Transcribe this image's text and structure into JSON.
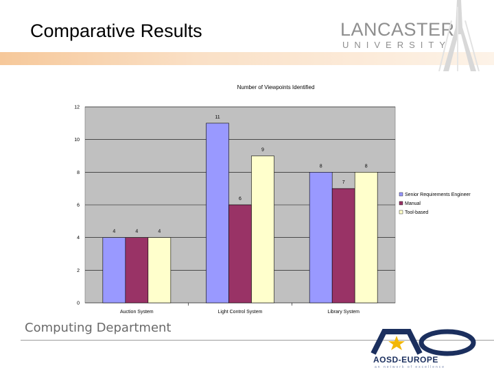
{
  "slide": {
    "title": "Comparative Results",
    "logo_main": "LANCASTER",
    "logo_sub": "UNIVERSITY",
    "footer": "Computing Department",
    "aosd_name": "AOSD-EUROPE",
    "aosd_tagline": "an network of excellence"
  },
  "colors": {
    "series": [
      "#9999ff",
      "#993366",
      "#ffffcc"
    ],
    "plot_bg": "#c0c0c0"
  },
  "chart_data": {
    "type": "bar",
    "title": "Number of Viewpoints Identified",
    "categories": [
      "Auction System",
      "Light Control System",
      "Library System"
    ],
    "series": [
      {
        "name": "Senior Requirements Engineer",
        "values": [
          4,
          11,
          8
        ]
      },
      {
        "name": "Manual",
        "values": [
          4,
          6,
          7
        ]
      },
      {
        "name": "Tool-based",
        "values": [
          4,
          9,
          8
        ]
      }
    ],
    "value_labels": [
      [
        "4",
        "11",
        "8"
      ],
      [
        "4",
        "6",
        "7"
      ],
      [
        "4",
        "9",
        "8"
      ]
    ],
    "yticks": [
      0,
      2,
      4,
      6,
      8,
      10,
      12
    ],
    "ytick_labels": [
      "0",
      "2",
      "4",
      "6",
      "8",
      "10",
      "12"
    ],
    "ylim": [
      0,
      12
    ],
    "xlabel": "",
    "ylabel": "",
    "legend": "right"
  }
}
